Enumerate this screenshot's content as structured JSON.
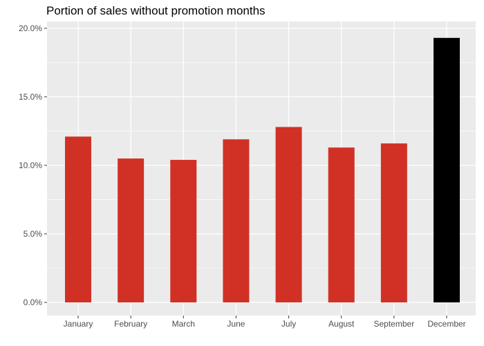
{
  "chart_data": {
    "type": "bar",
    "title": "Portion of sales without promotion months",
    "xlabel": "",
    "ylabel": "",
    "categories": [
      "January",
      "February",
      "March",
      "June",
      "July",
      "August",
      "September",
      "December"
    ],
    "values": [
      12.1,
      10.5,
      10.4,
      11.9,
      12.8,
      11.3,
      11.6,
      19.3
    ],
    "ylim": [
      0,
      20.5
    ],
    "yticks": [
      0,
      5,
      10,
      15,
      20
    ],
    "ytick_labels": [
      "0.0%",
      "5.0%",
      "10.0%",
      "15.0%",
      "20.0%"
    ],
    "grid": true,
    "legend": "none",
    "colors": {
      "bar_default": "#d13125",
      "bar_highlight": "#000000",
      "panel_background": "#ebebeb",
      "gridline": "#ffffff"
    },
    "highlight_category": "December"
  }
}
